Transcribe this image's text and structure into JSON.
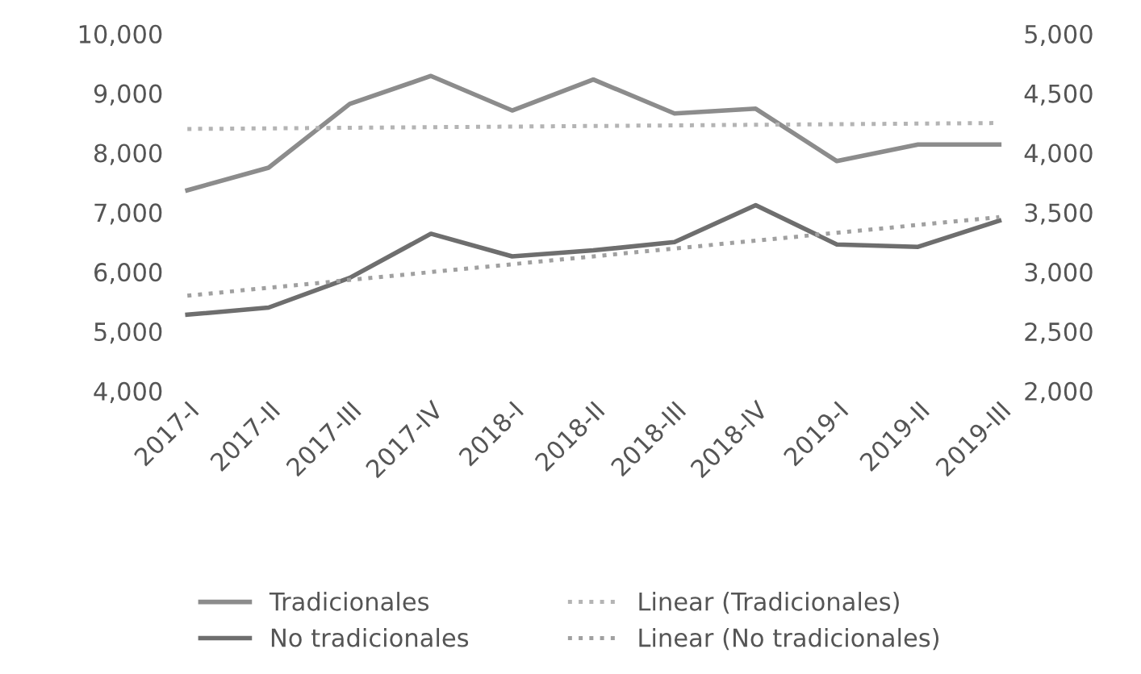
{
  "chart_data": {
    "type": "line",
    "categories": [
      "2017-I",
      "2017-II",
      "2017-III",
      "2017-IV",
      "2018-I",
      "2018-II",
      "2018-III",
      "2018-IV",
      "2019-I",
      "2019-II",
      "2019-III"
    ],
    "series": [
      {
        "name": "Tradicionales",
        "color": "#8c8c8c",
        "values": [
          7370,
          7750,
          8820,
          9290,
          8710,
          9230,
          8660,
          8740,
          7860,
          8140,
          8140
        ]
      },
      {
        "name": "No tradicionales",
        "color": "#6e6e6e",
        "axis": "y2",
        "values": [
          2640,
          2700,
          2950,
          3320,
          3130,
          3180,
          3250,
          3560,
          3230,
          3210,
          3430
        ]
      },
      {
        "name": "Linear (Tradicionales)",
        "color": "#b4b4b4",
        "line_style": "dotted",
        "values": [
          8400,
          null,
          null,
          null,
          null,
          null,
          null,
          null,
          null,
          null,
          8500
        ]
      },
      {
        "name": "Linear (No tradicionales)",
        "color": "#a0a0a0",
        "line_style": "dotted",
        "axis": "y2",
        "values": [
          2800,
          null,
          null,
          null,
          null,
          null,
          null,
          null,
          null,
          null,
          3460
        ]
      }
    ],
    "ylim": [
      4000,
      10000
    ],
    "yticks": [
      {
        "value": 4000,
        "label": "4,000"
      },
      {
        "value": 5000,
        "label": "5,000"
      },
      {
        "value": 6000,
        "label": "6,000"
      },
      {
        "value": 7000,
        "label": "7,000"
      },
      {
        "value": 8000,
        "label": "8,000"
      },
      {
        "value": 9000,
        "label": "9,000"
      },
      {
        "value": 10000,
        "label": "10,000"
      }
    ],
    "y2lim": [
      2000,
      5000
    ],
    "y2ticks": [
      {
        "value": 2000,
        "label": "2,000"
      },
      {
        "value": 2500,
        "label": "2,500"
      },
      {
        "value": 3000,
        "label": "3,000"
      },
      {
        "value": 3500,
        "label": "3,500"
      },
      {
        "value": 4000,
        "label": "4,000"
      },
      {
        "value": 4500,
        "label": "4,500"
      },
      {
        "value": 5000,
        "label": "5,000"
      }
    ],
    "grid": false,
    "legend": "bottom"
  }
}
